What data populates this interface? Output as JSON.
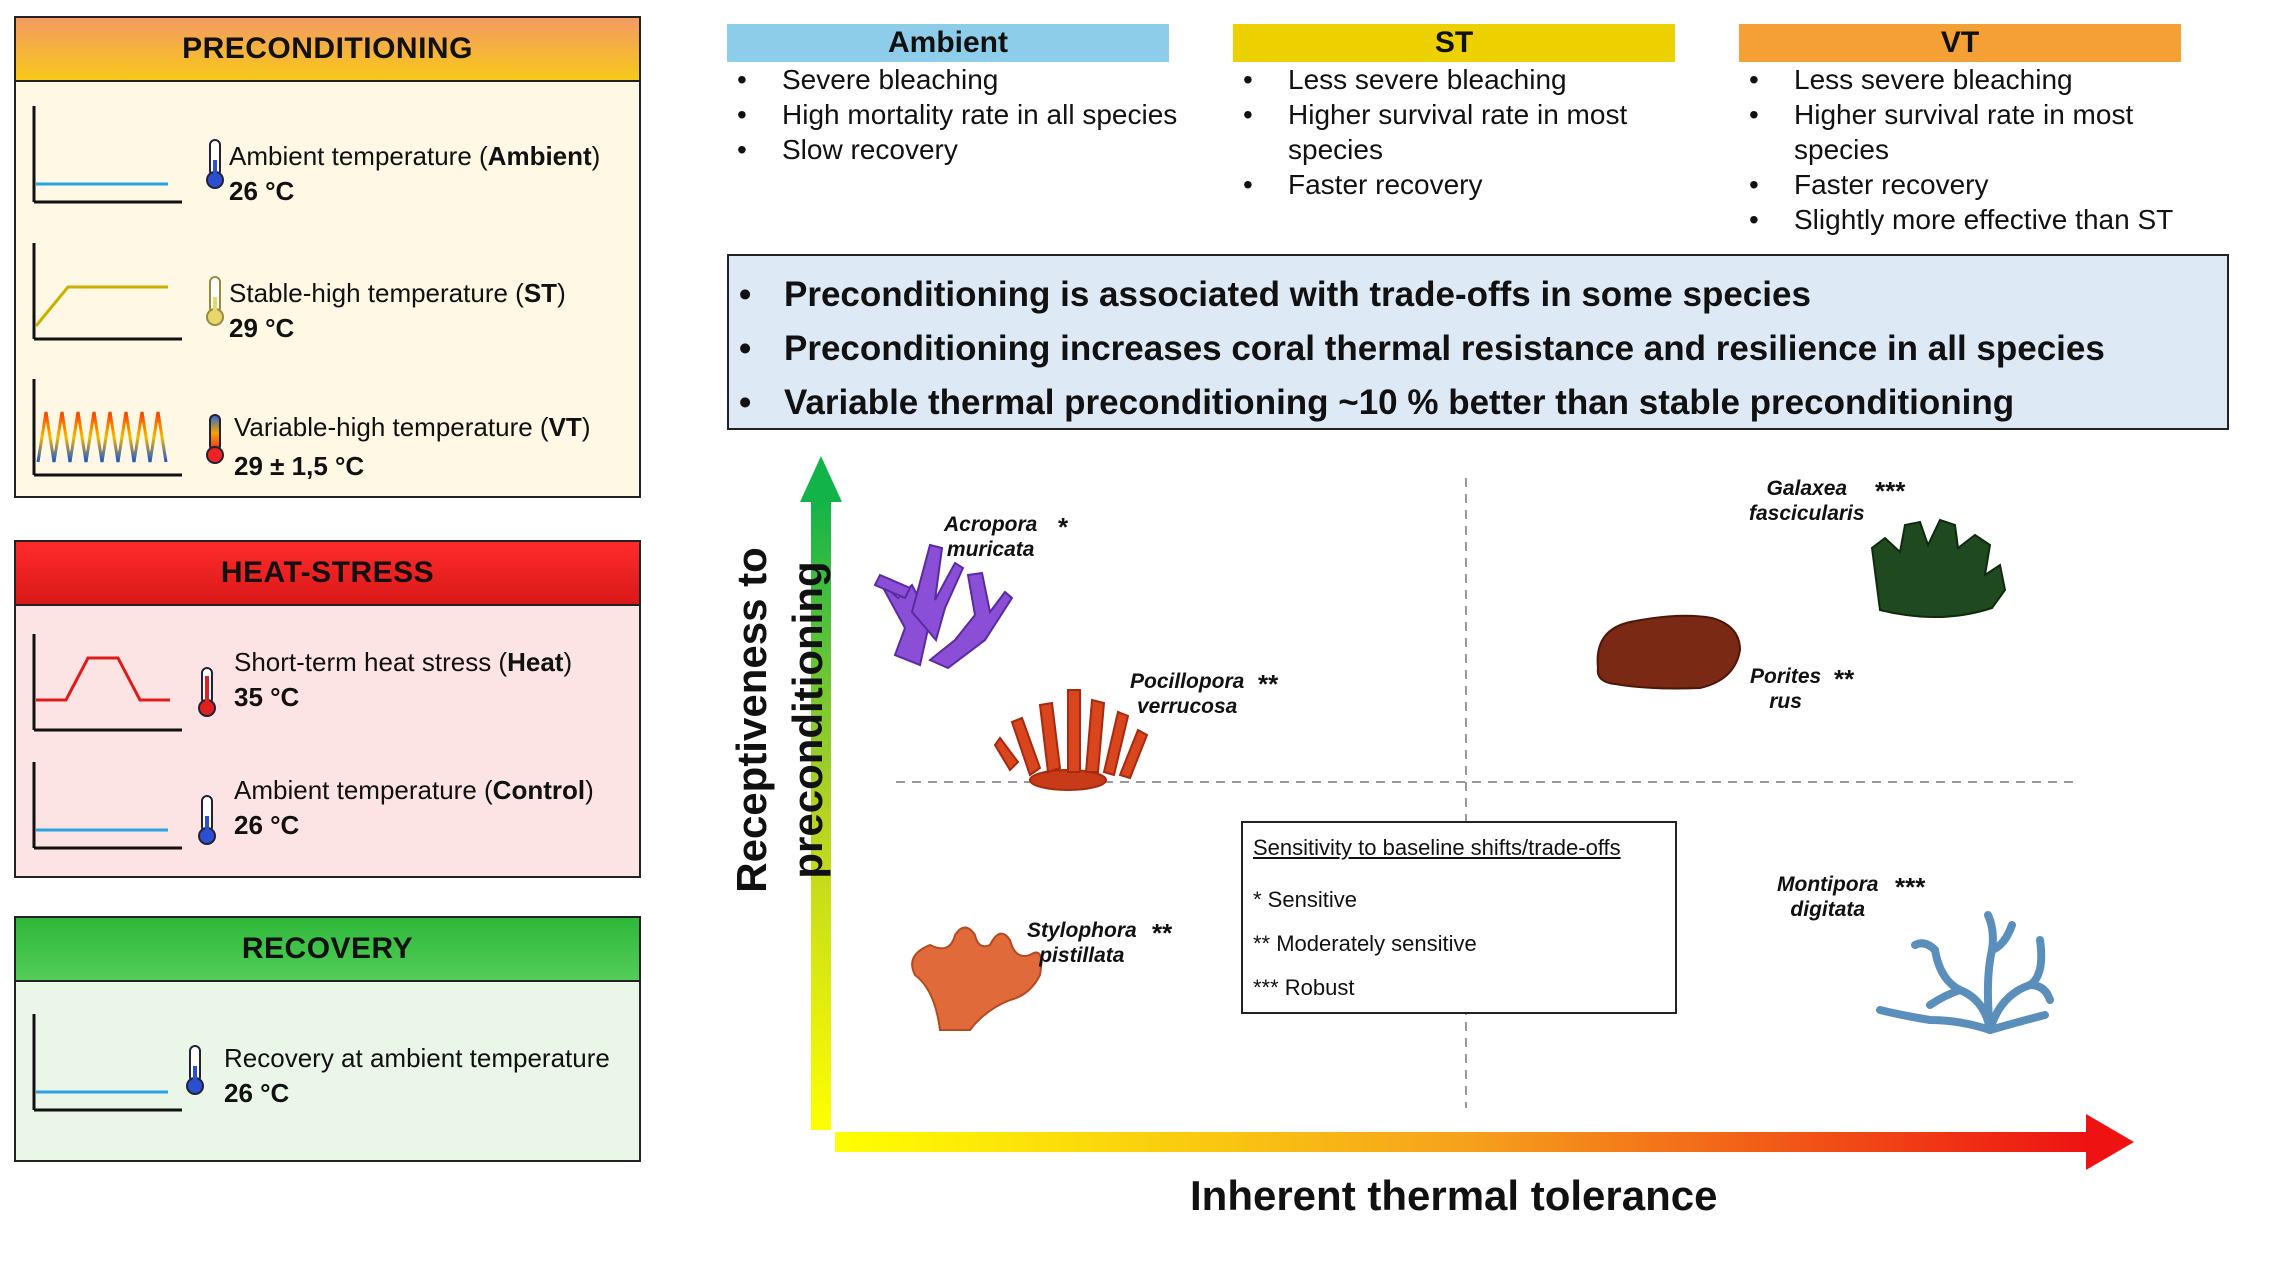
{
  "phases": [
    {
      "title": "PRECONDITIONING",
      "conditions": [
        {
          "label": "Ambient temperature (",
          "bold": "Ambient",
          "suffix": ")",
          "value": "26 °C"
        },
        {
          "label": "Stable-high temperature (",
          "bold": "ST",
          "suffix": ")",
          "value": "29 °C"
        },
        {
          "label": "Variable-high temperature (",
          "bold": "VT",
          "suffix": ")",
          "value": "29 ± 1,5 °C"
        }
      ]
    },
    {
      "title": "HEAT-STRESS",
      "conditions": [
        {
          "label": "Short-term heat stress (",
          "bold": "Heat",
          "suffix": ")",
          "value": "35 °C"
        },
        {
          "label": "Ambient temperature (",
          "bold": "Control",
          "suffix": ")",
          "value": "26 °C"
        }
      ]
    },
    {
      "title": "RECOVERY",
      "conditions": [
        {
          "label": "Recovery at ambient temperature",
          "bold": "",
          "suffix": "",
          "value": "26 °C"
        }
      ]
    }
  ],
  "treatments": [
    {
      "name": "Ambient",
      "color": "#8ecdea",
      "points": [
        "Severe bleaching",
        "High mortality rate in all species",
        "Slow recovery"
      ]
    },
    {
      "name": "ST",
      "color": "#ecd000",
      "points": [
        "Less severe bleaching",
        "Higher survival rate in most species",
        "Faster recovery"
      ]
    },
    {
      "name": "VT",
      "color": "#f4a035",
      "points": [
        "Less severe bleaching",
        "Higher survival rate in most species",
        "Faster recovery",
        "Slightly more effective than ST"
      ]
    }
  ],
  "summary": [
    "Preconditioning is associated with trade-offs in some species",
    "Preconditioning increases coral thermal resistance and resilience in all species",
    "Variable thermal preconditioning ~10 % better than stable preconditioning"
  ],
  "axes": {
    "x_label": "Inherent thermal tolerance",
    "y_label_line1": "Receptiveness to",
    "y_label_line2": "preconditioning"
  },
  "species": [
    {
      "line1": "Acropora",
      "line2": "muricata",
      "stars": "*"
    },
    {
      "line1": "Pocillopora",
      "line2": "verrucosa",
      "stars": "**"
    },
    {
      "line1": "Stylophora",
      "line2": "pistillata",
      "stars": "**"
    },
    {
      "line1": "Galaxea",
      "line2": "fascicularis",
      "stars": "***"
    },
    {
      "line1": "Porites",
      "line2": "rus",
      "stars": "**"
    },
    {
      "line1": "Montipora",
      "line2": "digitata",
      "stars": "***"
    }
  ],
  "legend": {
    "title": "Sensitivity to baseline shifts/trade-offs",
    "items": [
      "*  Sensitive",
      "**  Moderately sensitive",
      "*** Robust"
    ]
  }
}
